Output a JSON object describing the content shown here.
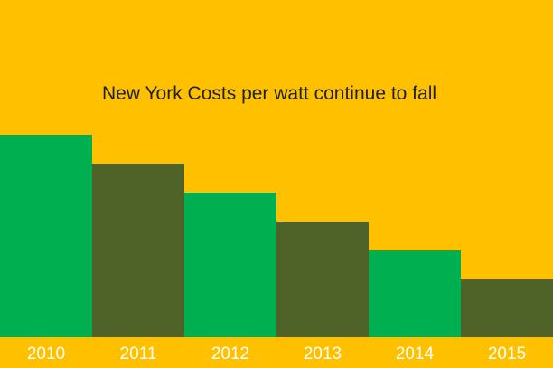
{
  "chart_data": {
    "type": "bar",
    "title": "New York Costs per watt continue to fall",
    "categories": [
      "2010",
      "2011",
      "2012",
      "2013",
      "2014",
      "2015"
    ],
    "values": [
      7,
      6,
      5,
      4,
      3,
      2
    ],
    "xlabel": "",
    "ylabel": "",
    "ylim": [
      0,
      7
    ],
    "grid": false,
    "legend": "none",
    "bar_colors": [
      "#00B050",
      "#4F6228",
      "#00B050",
      "#4F6228",
      "#00B050",
      "#4F6228"
    ],
    "background_color": "#FFC000",
    "tick_label_color": "#FFFFFF",
    "title_color": "#1F1F1F"
  }
}
